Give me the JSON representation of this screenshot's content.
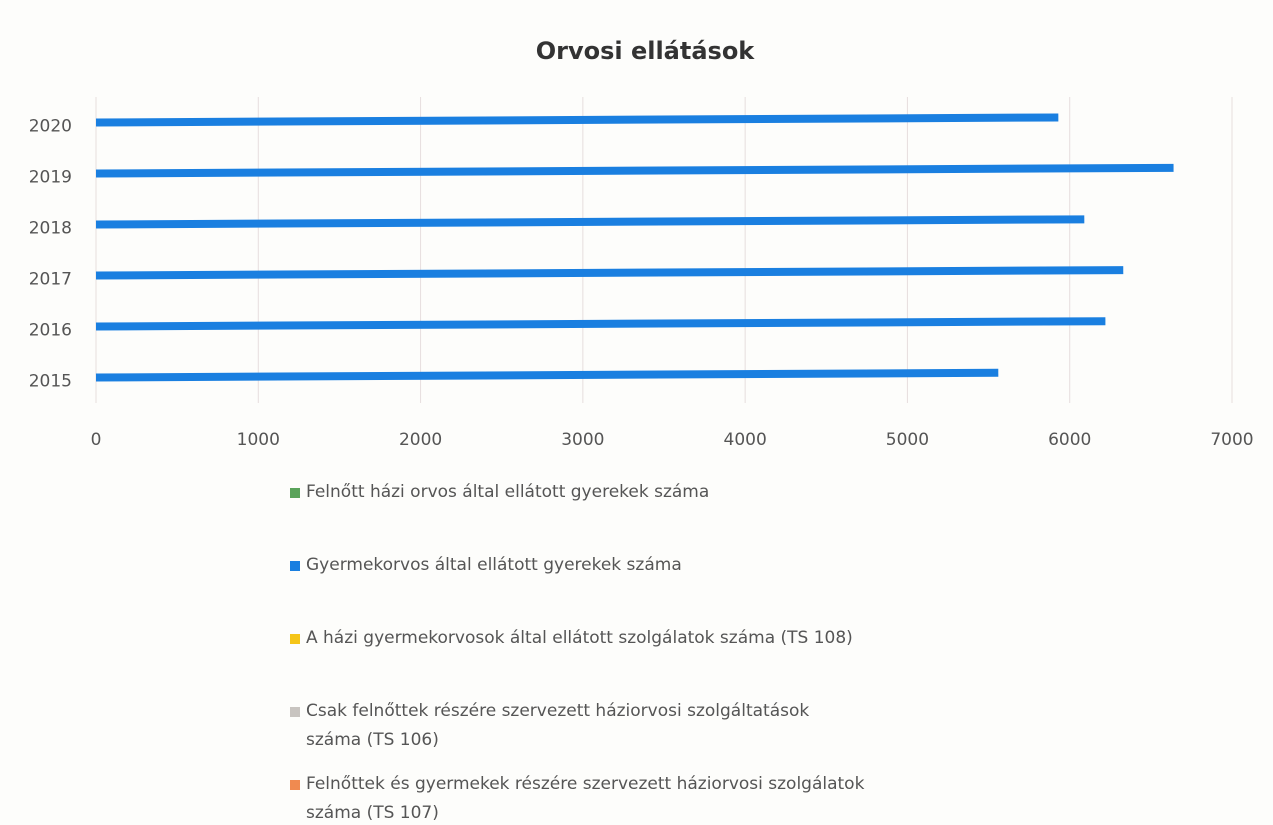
{
  "chart_data": {
    "type": "hbar",
    "title": "Orvosi ellátások",
    "categories": [
      "2015",
      "2016",
      "2017",
      "2018",
      "2019",
      "2020"
    ],
    "series": [
      {
        "name": "Felnőtt házi orvos által ellátott gyerekek száma",
        "color": "#5aa35a",
        "values": [
          null,
          null,
          null,
          null,
          null,
          null
        ]
      },
      {
        "name": "Gyermekorvos által ellátott gyerekek száma",
        "color": "#1a7fe0",
        "values": [
          5560,
          6220,
          6330,
          6090,
          6640,
          5930
        ]
      },
      {
        "name": "A házi gyermekorvosok által ellátott szolgálatok száma (TS 108)",
        "color": "#f5c518",
        "values": [
          null,
          null,
          null,
          null,
          null,
          null
        ]
      },
      {
        "name": "Csak felnőttek részére szervezett háziorvosi szolgáltatások száma (TS 106)",
        "color": "#c8c4c0",
        "values": [
          null,
          null,
          null,
          null,
          null,
          null
        ]
      },
      {
        "name": "Felnőttek és gyermekek részére szervezett háziorvosi szolgálatok száma (TS 107)",
        "color": "#f08a50",
        "values": [
          null,
          null,
          null,
          null,
          null,
          null
        ]
      }
    ],
    "xlim": [
      0,
      7000
    ],
    "xticks": [
      0,
      1000,
      2000,
      3000,
      4000,
      5000,
      6000,
      7000
    ],
    "grid": true
  }
}
